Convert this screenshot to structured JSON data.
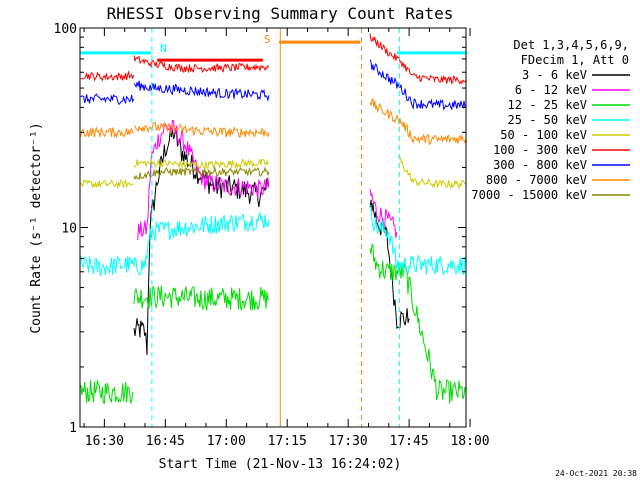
{
  "chart_data": {
    "type": "line",
    "title": "RHESSI Observing Summary Count Rates",
    "xlabel": "Start Time (21-Nov-13 16:24:02)",
    "ylabel": "Count Rate (s⁻¹ detector⁻¹)",
    "yscale": "log",
    "ylim": [
      1,
      100
    ],
    "xlim_minutes": [
      0,
      95
    ],
    "x_tick_labels": [
      "16:30",
      "16:45",
      "17:00",
      "17:15",
      "17:30",
      "17:45",
      "18:00"
    ],
    "x_tick_minutes": [
      6,
      21,
      36,
      51,
      66,
      81,
      96
    ],
    "y_tick_labels": [
      "1",
      "10",
      "100"
    ],
    "y_tick_values": [
      1,
      10,
      100
    ],
    "legend": {
      "position": "right",
      "header": [
        "Det 1,3,4,5,6,9,",
        "FDecim 1, Att 0"
      ],
      "entries": [
        {
          "label": "3 - 6 keV",
          "color": "#000000"
        },
        {
          "label": "6 - 12 keV",
          "color": "#ff00ff"
        },
        {
          "label": "12 - 25 keV",
          "color": "#00dd00"
        },
        {
          "label": "25 - 50 keV",
          "color": "#00ffff"
        },
        {
          "label": "50 - 100 keV",
          "color": "#cccc00"
        },
        {
          "label": "100 - 300 keV",
          "color": "#ff0000"
        },
        {
          "label": "300 - 800 keV",
          "color": "#0000ff"
        },
        {
          "label": "800 - 7000 keV",
          "color": "#ff8800"
        },
        {
          "label": "7000 - 15000 keV",
          "color": "#888800"
        }
      ]
    },
    "annotations": [
      {
        "text": "N",
        "color": "#00ffff"
      },
      {
        "text": "S",
        "color": "#ff8800"
      }
    ],
    "flag_bars": [
      {
        "name": "night-bar-1",
        "color": "#00ffff",
        "x_minutes": [
          0,
          17.5
        ],
        "y": 75
      },
      {
        "name": "night-bar-2",
        "color": "#00ffff",
        "x_minutes": [
          78,
          95
        ],
        "y": 75
      },
      {
        "name": "saa-bar",
        "color": "#ff8800",
        "x_minutes": [
          49,
          69
        ],
        "y": 85
      },
      {
        "name": "flare-bar",
        "color": "#ff0000",
        "x_minutes": [
          19,
          45
        ],
        "y": 69
      }
    ],
    "vertical_lines": [
      {
        "name": "night-start-line",
        "color": "#00ffff",
        "x_minutes": 17.7,
        "dashed": true
      },
      {
        "name": "saa-start-line",
        "color": "#ff8800",
        "x_minutes": 49.3,
        "dashed": false
      },
      {
        "name": "saa-end-line",
        "color": "#ff8800",
        "x_minutes": 69.3,
        "dashed": true
      },
      {
        "name": "night-end-line",
        "color": "#00ffff",
        "x_minutes": 78.6,
        "dashed": true
      },
      {
        "name": "night-start-line-2",
        "color": "#00ffff",
        "x_minutes": 95,
        "dashed": true
      }
    ],
    "series": [
      {
        "name": "3 - 6 keV",
        "color": "#000000",
        "noise": 0.06,
        "segments": [
          [
            [
              13.3,
              3.0
            ],
            [
              14.5,
              3.1
            ],
            [
              15.9,
              3.0
            ],
            [
              16.5,
              2.5
            ],
            [
              17.2,
              10
            ],
            [
              19,
              17
            ],
            [
              21,
              25
            ],
            [
              23,
              30
            ],
            [
              25,
              24
            ],
            [
              27,
              21
            ],
            [
              30,
              18
            ],
            [
              33,
              16
            ],
            [
              36,
              16
            ],
            [
              40,
              15.5
            ],
            [
              44,
              14.5
            ],
            [
              46.5,
              16
            ]
          ],
          [
            [
              71.4,
              14
            ],
            [
              73,
              11
            ],
            [
              75.5,
              9
            ],
            [
              78,
              3.5
            ],
            [
              81,
              3.5
            ]
          ]
        ]
      },
      {
        "name": "6 - 12 keV",
        "color": "#ff00ff",
        "noise": 0.05,
        "segments": [
          [
            [
              14.2,
              9.5
            ],
            [
              16.5,
              9.8
            ],
            [
              17.5,
              22
            ],
            [
              19,
              27
            ],
            [
              21,
              32
            ],
            [
              23,
              31
            ],
            [
              26,
              26
            ],
            [
              29,
              19
            ],
            [
              31,
              17
            ],
            [
              36,
              16
            ],
            [
              41,
              16
            ],
            [
              44,
              15.5
            ],
            [
              46.5,
              16
            ]
          ],
          [
            [
              71.4,
              15
            ],
            [
              73,
              12
            ],
            [
              75.5,
              11
            ],
            [
              78,
              9.5
            ]
          ]
        ]
      },
      {
        "name": "12 - 25 keV",
        "color": "#00dd00",
        "noise": 0.06,
        "segments": [
          [
            [
              0.2,
              1.5
            ],
            [
              5,
              1.5
            ],
            [
              10,
              1.5
            ],
            [
              13.0,
              1.5
            ]
          ],
          [
            [
              13.3,
              4.5
            ],
            [
              17,
              4.5
            ],
            [
              22,
              4.5
            ],
            [
              30,
              4.4
            ],
            [
              40,
              4.4
            ],
            [
              46.5,
              4.4
            ]
          ],
          [
            [
              71.4,
              8
            ],
            [
              73,
              6.5
            ],
            [
              75.5,
              6
            ],
            [
              80,
              6
            ],
            [
              88,
              1.5
            ],
            [
              95,
              1.5
            ]
          ]
        ]
      },
      {
        "name": "25 - 50 keV",
        "color": "#00ffff",
        "noise": 0.05,
        "segments": [
          [
            [
              0.2,
              6.5
            ],
            [
              5,
              6.3
            ],
            [
              10,
              6.5
            ],
            [
              13.2,
              6.5
            ]
          ],
          [
            [
              13.3,
              6.3
            ],
            [
              16,
              6.5
            ],
            [
              17.5,
              9.5
            ],
            [
              25,
              10
            ],
            [
              35,
              10.5
            ],
            [
              46.5,
              11
            ]
          ],
          [
            [
              71.4,
              12
            ],
            [
              73,
              10
            ],
            [
              76,
              9.5
            ],
            [
              78,
              6.5
            ],
            [
              85,
              6.5
            ],
            [
              95,
              6.5
            ]
          ]
        ]
      },
      {
        "name": "50 - 100 keV",
        "color": "#cccc00",
        "noise": 0.02,
        "segments": [
          [
            [
              0.2,
              16.5
            ],
            [
              5,
              16.5
            ],
            [
              10,
              16.5
            ],
            [
              13.2,
              16.5
            ]
          ],
          [
            [
              13.3,
              21
            ],
            [
              20,
              21
            ],
            [
              30,
              20.5
            ],
            [
              40,
              21
            ],
            [
              46.5,
              21
            ]
          ],
          [
            [
              78.6,
              22
            ],
            [
              82,
              17
            ],
            [
              88,
              16.5
            ],
            [
              95,
              16.5
            ]
          ]
        ]
      },
      {
        "name": "100 - 300 keV",
        "color": "#ff0000",
        "noise": 0.02,
        "segments": [
          [
            [
              0.2,
              58
            ],
            [
              5,
              57
            ],
            [
              10,
              57
            ],
            [
              13.2,
              58
            ]
          ],
          [
            [
              13.3,
              70
            ],
            [
              18,
              66
            ],
            [
              25,
              63
            ],
            [
              35,
              63
            ],
            [
              46.5,
              64
            ]
          ],
          [
            [
              71.4,
              90
            ],
            [
              73,
              85
            ],
            [
              76,
              75
            ],
            [
              79,
              68
            ],
            [
              82,
              57
            ],
            [
              88,
              55
            ],
            [
              95,
              55
            ]
          ]
        ]
      },
      {
        "name": "300 - 800 keV",
        "color": "#0000ff",
        "noise": 0.025,
        "segments": [
          [
            [
              0.2,
              44
            ],
            [
              5,
              44
            ],
            [
              10,
              44
            ],
            [
              13.2,
              44
            ]
          ],
          [
            [
              13.3,
              52
            ],
            [
              18,
              50
            ],
            [
              25,
              49
            ],
            [
              35,
              47
            ],
            [
              46.5,
              46
            ]
          ],
          [
            [
              71.4,
              66
            ],
            [
              73,
              62
            ],
            [
              76,
              56
            ],
            [
              79,
              50
            ],
            [
              82,
              42
            ],
            [
              88,
              41
            ],
            [
              95,
              41
            ]
          ]
        ]
      },
      {
        "name": "800 - 7000 keV",
        "color": "#ff8800",
        "noise": 0.025,
        "segments": [
          [
            [
              0.2,
              30
            ],
            [
              5,
              30
            ],
            [
              10,
              30
            ],
            [
              13.2,
              30
            ]
          ],
          [
            [
              13.3,
              32
            ],
            [
              18,
              32
            ],
            [
              25,
              31
            ],
            [
              35,
              30
            ],
            [
              46.5,
              30
            ]
          ],
          [
            [
              71.4,
              43
            ],
            [
              73,
              40
            ],
            [
              76,
              37
            ],
            [
              79,
              34
            ],
            [
              82,
              28
            ],
            [
              88,
              27.5
            ],
            [
              95,
              28
            ]
          ]
        ]
      },
      {
        "name": "7000 - 15000 keV",
        "color": "#888800",
        "noise": 0.02,
        "segments": [
          [
            [
              13.3,
              18
            ],
            [
              20,
              19
            ],
            [
              30,
              19
            ],
            [
              40,
              19
            ],
            [
              46.5,
              19
            ]
          ]
        ]
      }
    ]
  },
  "footer": {
    "timestamp": "24-Oct-2021 20:38"
  }
}
